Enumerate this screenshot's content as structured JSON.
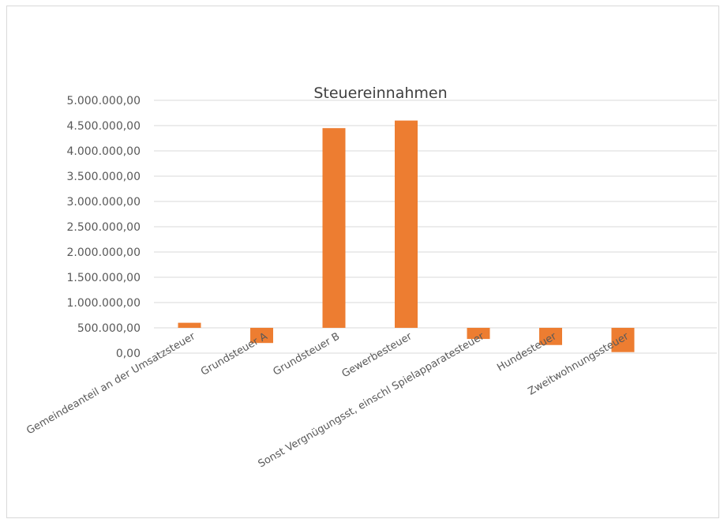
{
  "chart_data": {
    "type": "bar",
    "title": "Steuereinnahmen",
    "xlabel": "",
    "ylabel": "",
    "categories": [
      "Gemeindeanteil an der Umsatzsteuer",
      "Grundsteuer A",
      "Grundsteuer B",
      "Gewerbesteuer",
      "Sonst Vergnügungsst, einschl Spielapparatesteuer",
      "Hundesteuer",
      "Zweitwohnungssteuer"
    ],
    "values": [
      600000,
      200000,
      4450000,
      4600000,
      280000,
      160000,
      20000
    ],
    "ylim": [
      0,
      5000000
    ],
    "yticks": [
      0,
      500000,
      1000000,
      1500000,
      2000000,
      2500000,
      3000000,
      3500000,
      4000000,
      4500000,
      5000000
    ],
    "ytick_labels": [
      "0,00",
      "500.000,00",
      "1.000.000,00",
      "1.500.000,00",
      "2.000.000,00",
      "2.500.000,00",
      "3.000.000,00",
      "3.500.000,00",
      "4.000.000,00",
      "4.500.000,00",
      "5.000.000,00"
    ],
    "bar_color": "#ed7d31",
    "grid": true,
    "legend": "none"
  }
}
